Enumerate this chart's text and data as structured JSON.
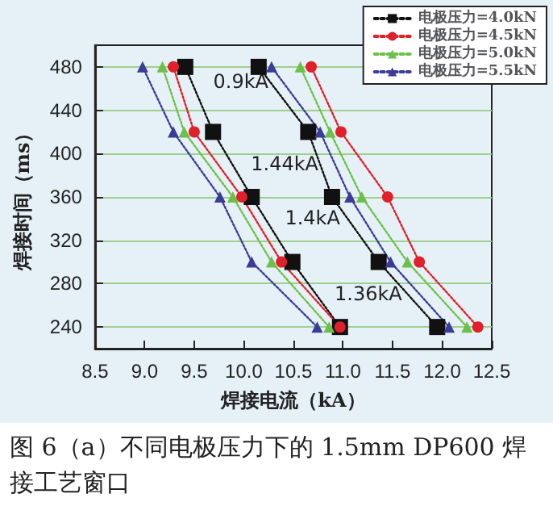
{
  "chart_data": {
    "type": "line",
    "xlabel": "焊接电流（kA）",
    "ylabel": "焊接时间（ms）",
    "xlim": [
      8.5,
      12.5
    ],
    "xticks": [
      8.5,
      {
        "value": 9,
        "label": "9.0"
      },
      9.5,
      {
        "value": 10,
        "label": "10.0"
      },
      10.5,
      {
        "value": 11,
        "label": "11.0"
      },
      11.5,
      {
        "value": 12,
        "label": "12.0"
      },
      12.5
    ],
    "ylim": [
      220,
      500
    ],
    "yticks": [
      240,
      280,
      320,
      360,
      400,
      440,
      480
    ],
    "grid": "y",
    "legend": "top right",
    "line_style": "dotted",
    "series": [
      {
        "name": "电极压力=4.0kN",
        "color": "#111111",
        "marker": "square",
        "x": [
          9.41,
          9.69,
          10.08,
          10.49,
          10.97
        ],
        "values": [
          480,
          420,
          360,
          300,
          240
        ]
      },
      {
        "color": "#111111",
        "marker": "square",
        "x": [
          10.15,
          10.65,
          10.89,
          11.36,
          11.95
        ],
        "values": [
          480,
          420,
          360,
          300,
          240
        ]
      },
      {
        "name": "电极压力=4.5kN",
        "color": "#e0202a",
        "marker": "circle",
        "x": [
          9.29,
          9.5,
          9.98,
          10.38,
          10.97
        ],
        "values": [
          480,
          420,
          360,
          300,
          240
        ]
      },
      {
        "color": "#e0202a",
        "marker": "circle",
        "x": [
          10.68,
          10.98,
          11.45,
          11.77,
          12.36
        ],
        "values": [
          480,
          420,
          360,
          300,
          240
        ]
      },
      {
        "name": "电极压力=5.0kN",
        "color": "#6cc04a",
        "marker": "triangle",
        "x": [
          9.18,
          9.4,
          9.89,
          10.28,
          10.86
        ],
        "values": [
          480,
          420,
          360,
          300,
          240
        ]
      },
      {
        "color": "#6cc04a",
        "marker": "triangle",
        "x": [
          10.57,
          10.87,
          11.19,
          11.65,
          12.25
        ],
        "values": [
          480,
          420,
          360,
          300,
          240
        ]
      },
      {
        "name": "电极压力=5.5kN",
        "color": "#3b3b9a",
        "marker": "triangle",
        "x": [
          8.98,
          9.29,
          9.76,
          10.08,
          10.74
        ],
        "values": [
          480,
          420,
          360,
          300,
          240
        ]
      },
      {
        "color": "#3b3b9a",
        "marker": "triangle",
        "x": [
          10.28,
          10.77,
          11.07,
          11.48,
          12.07
        ],
        "values": [
          480,
          420,
          360,
          300,
          240
        ]
      }
    ],
    "annotations": [
      "0.9kA",
      "1.44kA",
      "1.4kA",
      "1.36kA",
      "图 6（a）不同电极压力下的 1.5mm DP600 焊接工艺窗口"
    ]
  }
}
